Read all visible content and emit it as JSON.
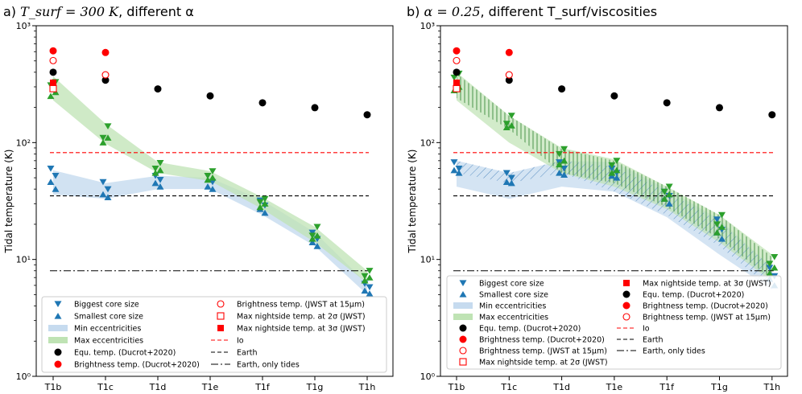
{
  "colors": {
    "blue": "#1f77b4",
    "green": "#2ca02c",
    "blue_fill": "#c6dbef",
    "green_fill": "#bfe3b4",
    "red": "#ff0000",
    "black": "#000000"
  },
  "ylabel": "Tidal temperature (K)",
  "y_ticks": [
    "10⁰",
    "10¹",
    "10²",
    "10³"
  ],
  "categories": [
    "T1b",
    "T1c",
    "T1d",
    "T1e",
    "T1f",
    "T1g",
    "T1h"
  ],
  "chart_data": [
    {
      "type": "line",
      "title_prefix": "a) ",
      "title_math": "T_surf = 300 K",
      "title_suffix": ", different α",
      "yscale": "log",
      "ylim": [
        1,
        1000
      ],
      "categories": [
        "T1b",
        "T1c",
        "T1d",
        "T1e",
        "T1f",
        "T1g",
        "T1h"
      ],
      "min_ecc_band": {
        "low": [
          36,
          33,
          40,
          40,
          24,
          13,
          5.0
        ],
        "high": [
          58,
          45,
          52,
          50,
          32,
          17,
          6.2
        ]
      },
      "max_ecc_band": {
        "low": [
          230,
          98,
          55,
          47,
          27,
          14,
          6.3
        ],
        "high": [
          370,
          145,
          68,
          57,
          34,
          19,
          8.0
        ]
      },
      "biggest_core": [
        [
          60,
          52
        ],
        [
          46,
          40
        ],
        [
          52,
          48
        ],
        [
          52,
          46
        ],
        [
          32,
          29
        ],
        [
          17,
          15
        ],
        [
          6.2,
          5.8
        ],
        [
          330,
          310
        ],
        [
          138,
          110
        ],
        [
          67,
          60
        ],
        [
          57,
          52
        ],
        [
          33,
          31
        ],
        [
          19,
          16
        ],
        [
          8.0,
          7.2
        ]
      ],
      "smallest_core": [
        [
          46,
          40
        ],
        [
          36,
          34
        ],
        [
          45,
          42
        ],
        [
          42,
          40
        ],
        [
          27,
          25
        ],
        [
          14,
          13
        ],
        [
          5.4,
          5.1
        ],
        [
          270,
          250
        ],
        [
          110,
          100
        ],
        [
          58,
          55
        ],
        [
          50,
          48
        ],
        [
          30,
          28
        ],
        [
          16,
          15
        ],
        [
          7.0,
          6.6
        ]
      ],
      "equ_temp": [
        400,
        342,
        288,
        251,
        219,
        199,
        173
      ],
      "brightness_ducrot": [
        [
          0,
          610
        ],
        [
          1,
          590
        ]
      ],
      "brightness_jwst15": [
        [
          0,
          503
        ],
        [
          1,
          380
        ]
      ],
      "max_night_2sigma": [
        [
          0,
          290
        ]
      ],
      "max_night_3sigma": [
        [
          0,
          325
        ]
      ],
      "io": 82,
      "earth": 35,
      "earth_tides_only": 8,
      "legend": {
        "col1": [
          "Biggest core size",
          "Smallest core size",
          "Min eccentricities",
          "Max eccentricities",
          "Equ. temp. (Ducrot+2020)",
          "Brightness temp. (Ducrot+2020)"
        ],
        "col2": [
          "Brightness temp. (JWST at 15μm)",
          "Max nightside temp. at 2σ (JWST)",
          "Max nightside temp. at 3σ (JWST)",
          "Io",
          "Earth",
          "Earth, only tides"
        ]
      }
    },
    {
      "type": "line",
      "title_prefix": "b) ",
      "title_math": "α = 0.25",
      "title_suffix": ", different T_surf/viscosities",
      "yscale": "log",
      "ylim": [
        1,
        1000
      ],
      "categories": [
        "T1b",
        "T1c",
        "T1d",
        "T1e",
        "T1f",
        "T1g",
        "T1h"
      ],
      "min_ecc_band": {
        "low": [
          42,
          33,
          42,
          38,
          23,
          11,
          5.5
        ],
        "high": [
          70,
          55,
          70,
          68,
          40,
          22,
          8.5
        ]
      },
      "max_ecc_band": {
        "low": [
          230,
          100,
          55,
          42,
          27,
          14,
          6.5
        ],
        "high": [
          400,
          170,
          90,
          72,
          42,
          24,
          11
        ]
      },
      "hatch_blue": {
        "low": [
          55,
          45,
          55,
          38,
          24,
          13,
          5.6
        ],
        "high": [
          70,
          55,
          70,
          62,
          38,
          21,
          8.5
        ]
      },
      "hatch_green": {
        "low": [
          240,
          130,
          55,
          45,
          28,
          15,
          6.8
        ],
        "high": [
          390,
          170,
          88,
          70,
          42,
          24,
          10.5
        ]
      },
      "biggest_core": [
        [
          68,
          60
        ],
        [
          55,
          50
        ],
        [
          68,
          60
        ],
        [
          60,
          55
        ],
        [
          38,
          35
        ],
        [
          22,
          18
        ],
        [
          8.5,
          7.2
        ],
        [
          390,
          360
        ],
        [
          170,
          145
        ],
        [
          88,
          80
        ],
        [
          70,
          64
        ],
        [
          42,
          38
        ],
        [
          24,
          20
        ],
        [
          10.5,
          9.2
        ]
      ],
      "smallest_core": [
        [
          58,
          55
        ],
        [
          46,
          45
        ],
        [
          55,
          53
        ],
        [
          52,
          50
        ],
        [
          33,
          30
        ],
        [
          17,
          15
        ],
        [
          6.8,
          6.0
        ],
        [
          300,
          280
        ],
        [
          140,
          135
        ],
        [
          70,
          65
        ],
        [
          58,
          55
        ],
        [
          36,
          33
        ],
        [
          19,
          17
        ],
        [
          8.5,
          7.6
        ]
      ],
      "equ_temp": [
        400,
        342,
        288,
        251,
        219,
        199,
        173
      ],
      "brightness_ducrot": [
        [
          0,
          610
        ],
        [
          1,
          590
        ]
      ],
      "brightness_jwst15": [
        [
          0,
          503
        ],
        [
          1,
          380
        ]
      ],
      "max_night_2sigma": [
        [
          0,
          290
        ]
      ],
      "max_night_3sigma": [
        [
          0,
          325
        ]
      ],
      "io": 82,
      "earth": 35,
      "earth_tides_only": 8,
      "legend": {
        "col1": [
          "Biggest core size",
          "Smallest core size",
          "Min eccentricities",
          "Max eccentricities",
          "Equ. temp. (Ducrot+2020)",
          "Brightness temp. (Ducrot+2020)",
          "Brightness temp. (JWST at 15μm)",
          "Max nightside temp. at 2σ (JWST)"
        ],
        "col2": [
          "Max nightside temp. at 3σ (JWST)",
          "Equ. temp. (Ducrot+2020)",
          "Brightness temp. (Ducrot+2020)",
          "Brightness temp. (JWST at 15μm)",
          "Io",
          "Earth",
          "Earth, only tides"
        ]
      }
    }
  ]
}
